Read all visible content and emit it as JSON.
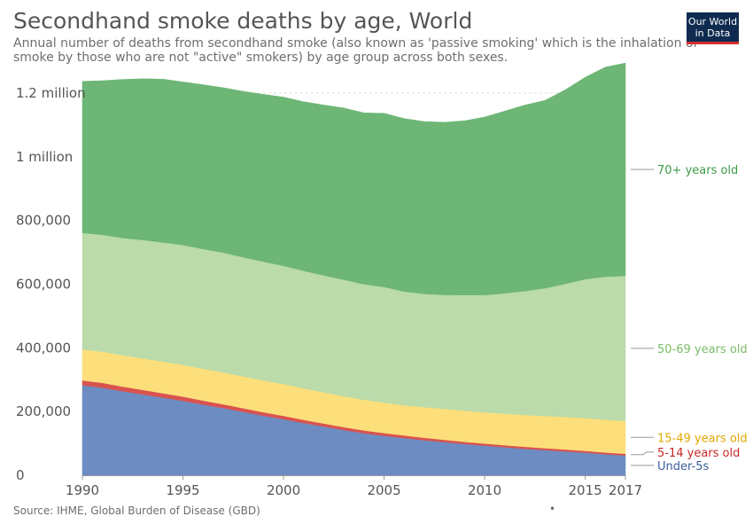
{
  "title": "Secondhand smoke deaths by age, World",
  "subtitle": "Annual number of deaths from secondhand smoke (also known as 'passive smoking' which is the inhalation of smoke by those who are not \"active\" smokers) by age group across both sexes.",
  "logo": {
    "line1": "Our World",
    "line2": "in Data"
  },
  "source": "Source: IHME, Global Burden of Disease (GBD)",
  "footer_mark": "•",
  "chart_data": {
    "type": "area",
    "stacked": true,
    "title": "Secondhand smoke deaths by age, World",
    "xlim": [
      1990,
      2017
    ],
    "ylim": [
      0,
      1200000
    ],
    "x_ticks": [
      {
        "value": 1990,
        "label": "1990"
      },
      {
        "value": 1995,
        "label": "1995"
      },
      {
        "value": 2000,
        "label": "2000"
      },
      {
        "value": 2005,
        "label": "2005"
      },
      {
        "value": 2010,
        "label": "2010"
      },
      {
        "value": 2015,
        "label": "2015"
      },
      {
        "value": 2017,
        "label": "2017"
      }
    ],
    "y_ticks": [
      {
        "value": 0,
        "label": "0"
      },
      {
        "value": 200000,
        "label": "200,000"
      },
      {
        "value": 400000,
        "label": "400,000"
      },
      {
        "value": 600000,
        "label": "600,000"
      },
      {
        "value": 800000,
        "label": "800,000"
      },
      {
        "value": 1000000,
        "label": "1 million"
      },
      {
        "value": 1200000,
        "label": "1.2 million"
      }
    ],
    "grid": true,
    "legend_placement": "right (inline labels)",
    "x": [
      1990,
      1991,
      1992,
      1993,
      1994,
      1995,
      1996,
      1997,
      1998,
      1999,
      2000,
      2001,
      2002,
      2003,
      2004,
      2005,
      2006,
      2007,
      2008,
      2009,
      2010,
      2011,
      2012,
      2013,
      2014,
      2015,
      2016,
      2017
    ],
    "series": [
      {
        "name": "Under-5s",
        "color": "#6d8cc2",
        "label_color": "#3a5f9f",
        "values": [
          283000,
          275000,
          264000,
          254000,
          244000,
          234000,
          222000,
          211000,
          199000,
          187000,
          176000,
          164000,
          153000,
          142000,
          132000,
          124000,
          117000,
          110000,
          104000,
          98000,
          93000,
          88000,
          83000,
          79000,
          75000,
          71000,
          66000,
          62000
        ]
      },
      {
        "name": "5-14 years old",
        "color": "#d9534f",
        "label_color": "#c62828",
        "values": [
          15000,
          15000,
          14500,
          14000,
          13500,
          13000,
          12500,
          12000,
          11500,
          11000,
          10500,
          10000,
          9600,
          9200,
          8800,
          8400,
          8000,
          7700,
          7400,
          7100,
          6800,
          6500,
          6300,
          6100,
          5900,
          5700,
          5500,
          5300
        ]
      },
      {
        "name": "15-49 years old",
        "color": "#fcdf7b",
        "label_color": "#e0a800",
        "values": [
          97000,
          98000,
          98500,
          99000,
          99500,
          100000,
          100000,
          100000,
          100000,
          100000,
          100000,
          99000,
          98000,
          97000,
          96000,
          96000,
          95000,
          96000,
          97000,
          98000,
          98000,
          99000,
          100000,
          101000,
          102000,
          103000,
          103000,
          103000
        ]
      },
      {
        "name": "50-69 years old",
        "color": "#bbdbaa",
        "label_color": "#7bbd6a",
        "values": [
          366000,
          367000,
          368000,
          372000,
          374000,
          376000,
          376000,
          376000,
          374000,
          373000,
          371000,
          369000,
          367000,
          366000,
          363000,
          363000,
          357000,
          356000,
          358000,
          363000,
          368000,
          378000,
          389000,
          401000,
          418000,
          436000,
          449000,
          456000
        ]
      },
      {
        "name": "70+ years old",
        "color": "#6db675",
        "label_color": "#3d9a47",
        "values": [
          476000,
          484000,
          498000,
          506000,
          513000,
          512000,
          516000,
          518000,
          521000,
          525000,
          530000,
          531000,
          535000,
          539000,
          538000,
          545000,
          543000,
          541000,
          542000,
          547000,
          559000,
          572000,
          584000,
          590000,
          609000,
          634000,
          658000,
          668000
        ]
      }
    ]
  }
}
